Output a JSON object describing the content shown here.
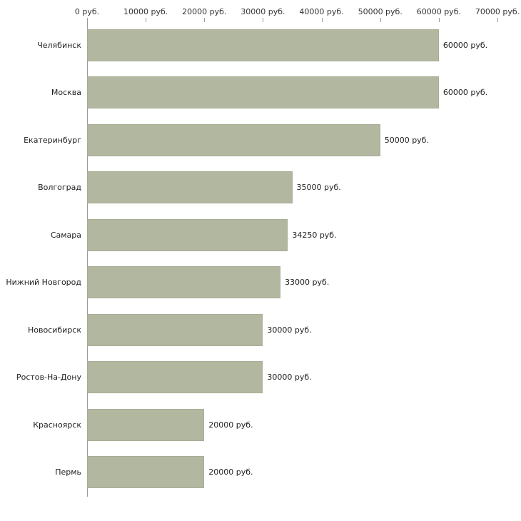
{
  "chart_data": {
    "type": "bar",
    "orientation": "horizontal",
    "title": "",
    "xlabel": "",
    "ylabel": "",
    "xlim": [
      0,
      70000
    ],
    "grid": false,
    "legend": false,
    "bar_color": "#b2b8a0",
    "bar_border_color": "#a7ad95",
    "axis_color": "#9a9a9a",
    "categories": [
      "Челябинск",
      "Москва",
      "Екатеринбург",
      "Волгоград",
      "Самара",
      "Нижний Новгород",
      "Новосибирск",
      "Ростов-На-Дону",
      "Красноярск",
      "Пермь"
    ],
    "values": [
      60000,
      60000,
      50000,
      35000,
      34250,
      33000,
      30000,
      30000,
      20000,
      20000
    ],
    "value_labels": [
      "60000 руб.",
      "60000 руб.",
      "50000 руб.",
      "35000 руб.",
      "34250 руб.",
      "33000 руб.",
      "30000 руб.",
      "30000 руб.",
      "20000 руб.",
      "20000 руб."
    ],
    "x_ticks": [
      0,
      10000,
      20000,
      30000,
      40000,
      50000,
      60000,
      70000
    ],
    "x_tick_labels": [
      "0 руб.",
      "10000 руб.",
      "20000 руб.",
      "30000 руб.",
      "40000 руб.",
      "50000 руб.",
      "60000 руб.",
      "70000 руб."
    ]
  }
}
